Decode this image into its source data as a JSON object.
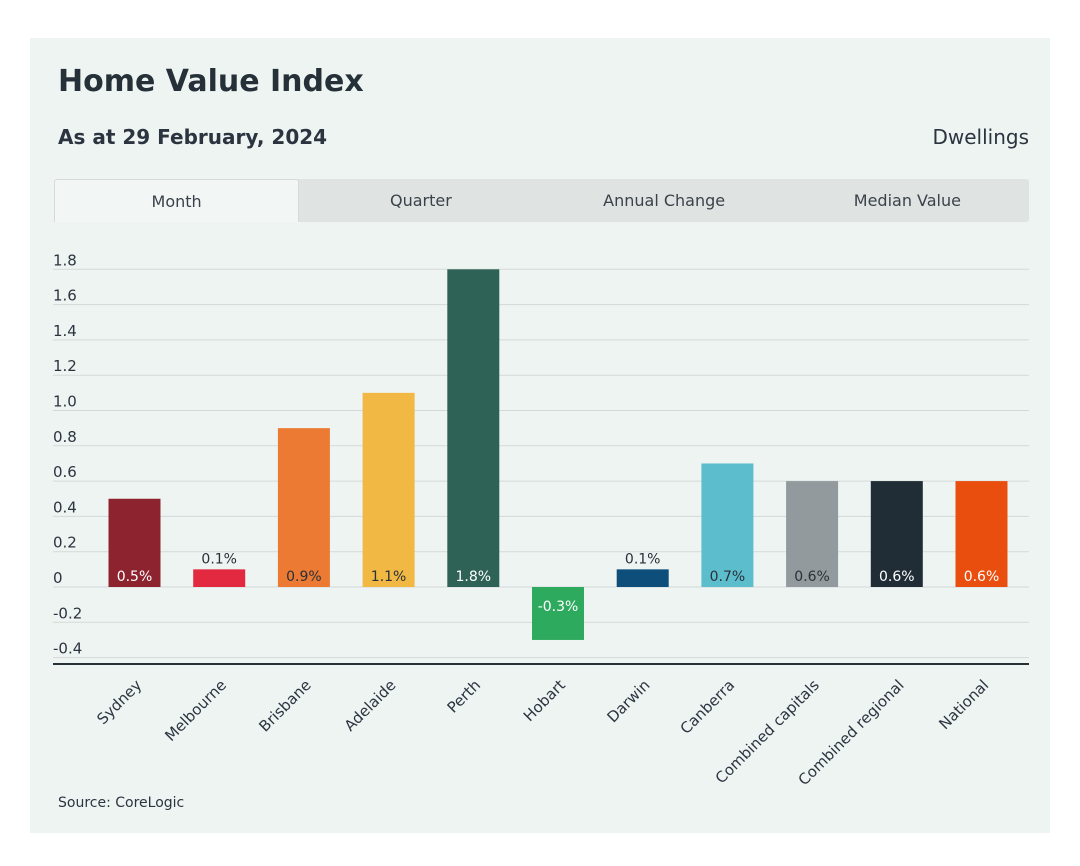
{
  "header": {
    "title": "Home Value Index",
    "subtitle": "As at 29 February, 2024",
    "dwellings": "Dwellings"
  },
  "tabs": [
    {
      "label": "Month",
      "active": true
    },
    {
      "label": "Quarter",
      "active": false
    },
    {
      "label": "Annual Change",
      "active": false
    },
    {
      "label": "Median Value",
      "active": false
    }
  ],
  "footer": {
    "source": "Source: CoreLogic"
  },
  "chart_data": {
    "type": "bar",
    "categories": [
      "Sydney",
      "Melbourne",
      "Brisbane",
      "Adelaide",
      "Perth",
      "Hobart",
      "Darwin",
      "Canberra",
      "Combined capitals",
      "Combined regional",
      "National"
    ],
    "values": [
      0.5,
      0.1,
      0.9,
      1.1,
      1.8,
      -0.3,
      0.1,
      0.7,
      0.6,
      0.6,
      0.6
    ],
    "data_labels": [
      "0.5%",
      "0.1%",
      "0.9%",
      "1.1%",
      "1.8%",
      "-0.3%",
      "0.1%",
      "0.7%",
      "0.6%",
      "0.6%",
      "0.6%"
    ],
    "colors": [
      "#8e2330",
      "#e2293f",
      "#ec7a33",
      "#f1b944",
      "#2f6257",
      "#2eaa5e",
      "#0d4f7a",
      "#5cbecd",
      "#929a9d",
      "#212d36",
      "#ea4e0f"
    ],
    "label_colors": [
      "#ffffff",
      "#2a3038",
      "#2a3038",
      "#2a3038",
      "#ffffff",
      "#ffffff",
      "#2a3038",
      "#2a3038",
      "#2a3038",
      "#ffffff",
      "#ffffff"
    ],
    "y_ticks": [
      "1.8",
      "1.6",
      "1.4",
      "1.2",
      "1.0",
      "0.8",
      "0.6",
      "0.4",
      "0.2",
      "0",
      "-0.2",
      "-0.4"
    ],
    "ylim": [
      -0.4,
      1.8
    ],
    "grid": true,
    "title": "",
    "xlabel": "",
    "ylabel": ""
  }
}
